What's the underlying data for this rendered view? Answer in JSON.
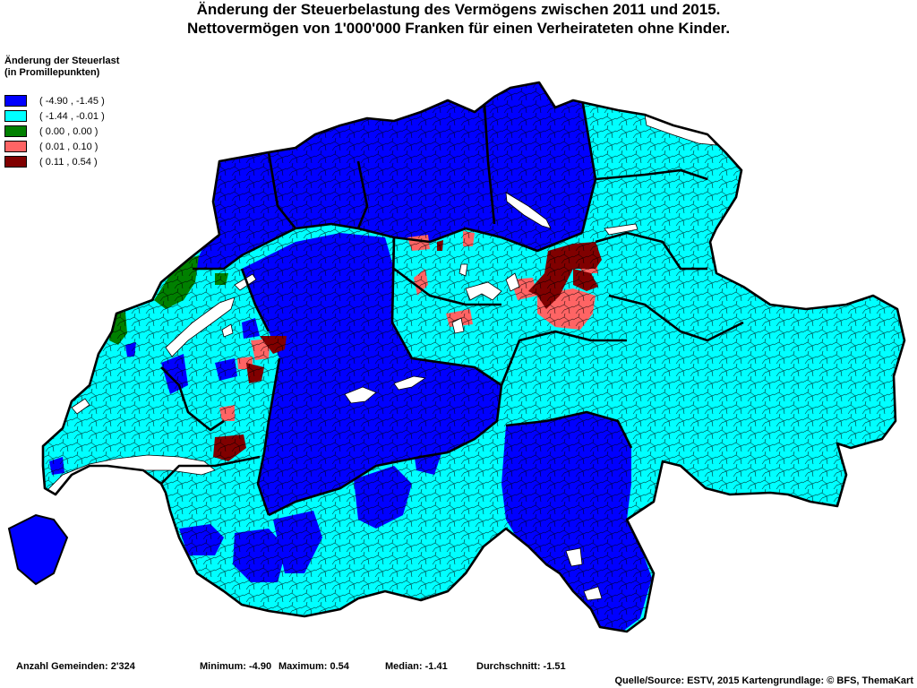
{
  "title": {
    "line1": "Änderung der Steuerbelastung des Vermögens zwischen 2011 und 2015.",
    "line2": "Nettovermögen von 1'000'000 Franken für einen Verheirateten ohne Kinder."
  },
  "legend": {
    "title_line1": "Änderung der Steuerlast",
    "title_line2": "(in Promillepunkten)",
    "items": [
      {
        "label": "( -4.90 , -1.45 )",
        "color": "#0000ff"
      },
      {
        "label": "( -1.44 , -0.01 )",
        "color": "#00ffff"
      },
      {
        "label": "( 0.00 , 0.00 )",
        "color": "#008000"
      },
      {
        "label": "( 0.01 , 0.10 )",
        "color": "#ff6464"
      },
      {
        "label": "( 0.11 , 0.54 )",
        "color": "#800000"
      }
    ]
  },
  "stats": {
    "count": "Anzahl Gemeinden: 2'324",
    "minimum": "Minimum: -4.90",
    "maximum": "Maximum: 0.54",
    "median": "Median: -1.41",
    "mean": "Durchschnitt: -1.51"
  },
  "source": "Quelle/Source: ESTV, 2015 Kartengrundlage: © BFS, ThemaKart",
  "colors": {
    "outline": "#000000",
    "lake": "#ffffff"
  }
}
